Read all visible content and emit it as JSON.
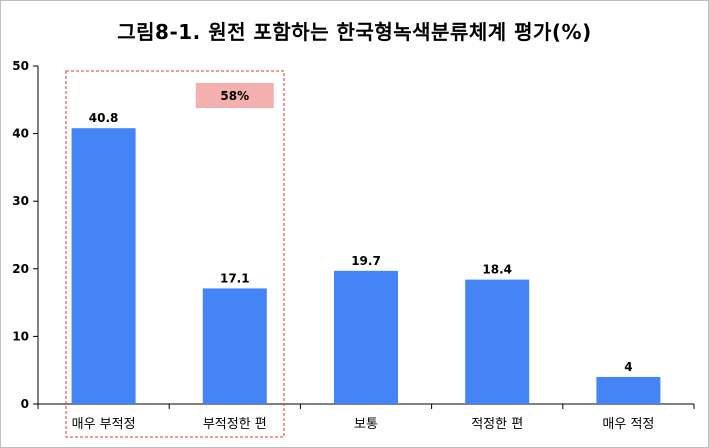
{
  "chart_data": {
    "type": "bar",
    "title": "그림8-1. 원전 포함하는 한국형녹색분류체계 평가(%)",
    "categories": [
      "매우 부적정",
      "부적정한 편",
      "보통",
      "적정한 편",
      "매우 적정"
    ],
    "values": [
      40.8,
      17.1,
      19.7,
      18.4,
      4
    ],
    "value_labels": [
      "40.8",
      "17.1",
      "19.7",
      "18.4",
      "4"
    ],
    "ylim": [
      0,
      50
    ],
    "yticks": [
      0,
      10,
      20,
      30,
      40,
      50
    ],
    "ytick_labels": [
      "0",
      "10",
      "20",
      "30",
      "40",
      "50"
    ],
    "xlabel": "",
    "ylabel": "",
    "grid": false,
    "colors": {
      "bar": "#4584F6",
      "annotation_fill": "#F4B0AE",
      "highlight_border": "#E3342F",
      "axis": "#000000",
      "frame": "#BFBFBF"
    },
    "annotation": {
      "text": "58%",
      "highlighted_categories": [
        "매우 부적정",
        "부적정한 편"
      ]
    }
  }
}
